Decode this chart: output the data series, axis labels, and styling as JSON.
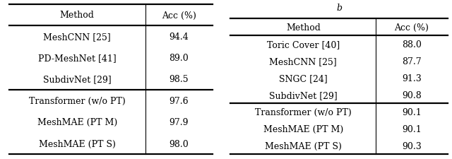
{
  "table1": {
    "headers": [
      "Method",
      "Acc (%)"
    ],
    "rows_group1": [
      [
        "MeshCNN [25]",
        "94.4"
      ],
      [
        "PD-MeshNet [41]",
        "89.0"
      ],
      [
        "SubdivNet [29]",
        "98.5"
      ]
    ],
    "rows_group2": [
      [
        "Transformer (w/o PT)",
        "97.6"
      ],
      [
        "MeshMAE (PT M)",
        "97.9"
      ],
      [
        "MeshMAE (PT S)",
        "98.0"
      ]
    ]
  },
  "table2": {
    "subtitle": "b",
    "headers": [
      "Method",
      "Acc (%)"
    ],
    "rows_group1": [
      [
        "Toric Cover [40]",
        "88.0"
      ],
      [
        "MeshCNN [25]",
        "87.7"
      ],
      [
        "SNGC [24]",
        "91.3"
      ],
      [
        "SubdivNet [29]",
        "90.8"
      ]
    ],
    "rows_group2": [
      [
        "Transformer (w/o PT)",
        "90.1"
      ],
      [
        "MeshMAE (PT M)",
        "90.1"
      ],
      [
        "MeshMAE (PT S)",
        "90.3"
      ]
    ]
  },
  "font_size": 9.0,
  "bg_color": "#ffffff",
  "line_color": "#000000"
}
